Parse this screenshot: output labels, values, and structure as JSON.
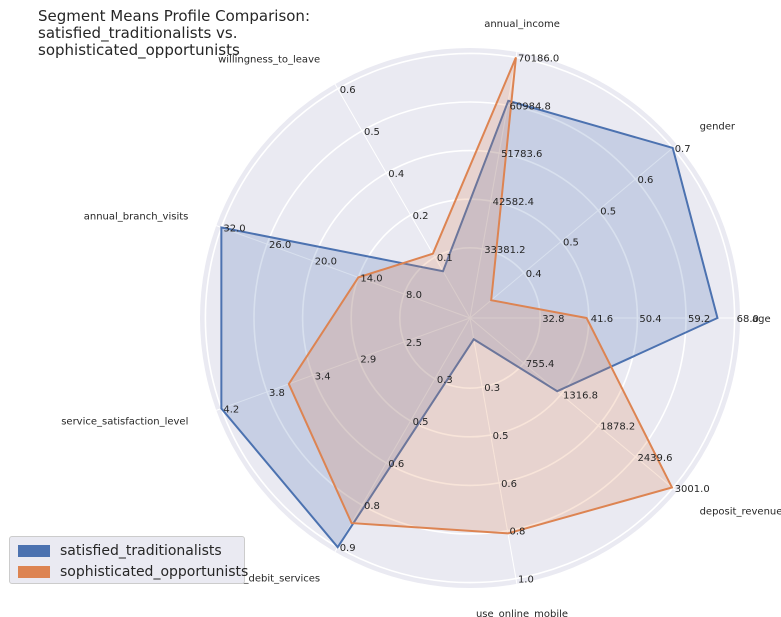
{
  "title": "Segment Means Profile Comparison:\nsatisfied_traditionalists vs.\nsophisticated_opportunists",
  "chart_data": {
    "type": "radar",
    "axes": [
      {
        "name": "age",
        "min": 24.0,
        "max": 68.0,
        "ticks": [
          "32.8",
          "41.6",
          "50.4",
          "59.2",
          "68.0"
        ]
      },
      {
        "name": "gender",
        "min": 0.3,
        "max": 0.7,
        "ticks": [
          "0.4",
          "0.5",
          "0.5",
          "0.6",
          "0.7"
        ]
      },
      {
        "name": "annual_income",
        "min": 24180.0,
        "max": 70186.0,
        "ticks": [
          "33381.2",
          "42582.4",
          "51783.6",
          "60984.8",
          "70186.0"
        ]
      },
      {
        "name": "willingness_to_leave",
        "min": 0.0,
        "max": 0.6,
        "ticks": [
          "0.1",
          "0.2",
          "0.4",
          "0.5",
          "0.6"
        ]
      },
      {
        "name": "annual_branch_visits",
        "min": 2.0,
        "max": 32.0,
        "ticks": [
          "8.0",
          "14.0",
          "20.0",
          "26.0",
          "32.0"
        ]
      },
      {
        "name": "service_satisfaction_level",
        "min": 2.0,
        "max": 4.2,
        "ticks": [
          "2.5",
          "2.9",
          "3.4",
          "3.8",
          "4.2"
        ]
      },
      {
        "name": "use_debit_services",
        "min": 0.2,
        "max": 0.9,
        "ticks": [
          "0.3",
          "0.5",
          "0.6",
          "0.8",
          "0.9"
        ]
      },
      {
        "name": "use_online_mobile",
        "min": 0.1,
        "max": 1.0,
        "ticks": [
          "0.3",
          "0.5",
          "0.6",
          "0.8",
          "1.0"
        ]
      },
      {
        "name": "deposit_revenue",
        "min": 194.2,
        "max": 3001.0,
        "ticks": [
          "755.4",
          "1316.8",
          "1878.2",
          "2439.6",
          "3001.0"
        ]
      }
    ],
    "series": [
      {
        "name": "satisfied_traditionalists",
        "color": "#4c72b0",
        "values": [
          64.9,
          0.7,
          61845.0,
          0.08,
          32.0,
          4.2,
          0.9,
          0.1,
          1260.0
        ]
      },
      {
        "name": "sophisticated_opportunists",
        "color": "#dd8452",
        "values": [
          41.2,
          0.31,
          70186.0,
          0.13,
          14.0,
          3.55,
          0.82,
          0.83,
          2990.0
        ]
      }
    ],
    "grid": true,
    "legend_position": "lower-left"
  }
}
